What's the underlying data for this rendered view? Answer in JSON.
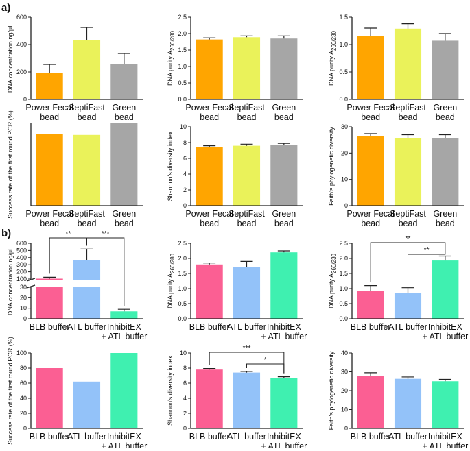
{
  "panels": {
    "a": "a)",
    "b": "b)"
  },
  "colors": {
    "a": [
      "#FFA500",
      "#EAF25A",
      "#A6A6A6"
    ],
    "b": [
      "#FB5F93",
      "#93C2F9",
      "#3FF0B0"
    ],
    "axis": "#222222"
  },
  "chart_data": [
    {
      "id": "a1",
      "type": "bar",
      "categories": [
        "Power Fecal\nbead",
        "SeptiFast\nbead",
        "Green\nbead"
      ],
      "values": [
        195,
        435,
        260
      ],
      "errors": [
        60,
        90,
        75
      ],
      "ylabel": "DNA concentration ng/μL",
      "ylim": [
        0,
        600
      ],
      "yticks": [
        "0",
        "200",
        "400",
        "600"
      ],
      "sig": []
    },
    {
      "id": "a2",
      "type": "bar",
      "categories": [
        "Power Fecal\nbead",
        "SeptiFast\nbead",
        "Green\nbead"
      ],
      "values": [
        1.82,
        1.89,
        1.85
      ],
      "errors": [
        0.05,
        0.04,
        0.08
      ],
      "ylabel": "DNA purity A260/280",
      "ylim": [
        0,
        2.5
      ],
      "yticks": [
        "0.0",
        "0.5",
        "1.0",
        "1.5",
        "2.0",
        "2.5"
      ],
      "sig": []
    },
    {
      "id": "a3",
      "type": "bar",
      "categories": [
        "Power Fecal\nbead",
        "SeptiFast\nbead",
        "Green\nbead"
      ],
      "values": [
        1.15,
        1.29,
        1.07
      ],
      "errors": [
        0.15,
        0.09,
        0.13
      ],
      "ylabel": "DNA purity A260/230",
      "ylim": [
        0,
        1.5
      ],
      "yticks": [
        "0.0",
        "0.5",
        "1.0",
        "1.5"
      ],
      "sig": []
    },
    {
      "id": "a4",
      "type": "bar",
      "categories": [
        "Power Fecal\nbead",
        "SeptiFast\nbead",
        "Green\nbead"
      ],
      "values": [
        87,
        86,
        100
      ],
      "errors": null,
      "ylabel": "Success rate of the first round PCR (%)",
      "ylim": [
        0,
        100
      ],
      "yticks": [],
      "sig": []
    },
    {
      "id": "a5",
      "type": "bar",
      "categories": [
        "Power Fecal\nbead",
        "SeptiFast\nbead",
        "Green\nbead"
      ],
      "values": [
        7.4,
        7.6,
        7.7
      ],
      "errors": [
        0.2,
        0.2,
        0.2
      ],
      "ylabel": "Shannon's diversity index",
      "ylim": [
        0,
        10
      ],
      "yticks": [
        "0",
        "2",
        "4",
        "6",
        "8",
        "10"
      ],
      "sig": []
    },
    {
      "id": "a6",
      "type": "bar",
      "categories": [
        "Power Fecal\nbead",
        "SeptiFast\nbead",
        "Green\nbead"
      ],
      "values": [
        26.5,
        25.8,
        25.8
      ],
      "errors": [
        0.9,
        1.2,
        1.2
      ],
      "ylabel": "Faith's phylogenetic diversity",
      "ylim": [
        0,
        30
      ],
      "yticks": [
        "0",
        "10",
        "20",
        "30"
      ],
      "sig": []
    },
    {
      "id": "b1",
      "type": "bar",
      "categories": [
        "BLB buffer",
        "ATL buffer",
        "InhibitEX\n+ ATL buffer"
      ],
      "values": [
        105,
        360,
        7
      ],
      "errors": [
        20,
        160,
        2
      ],
      "ylabel": "DNA concentration ng/μL",
      "ylim": [
        0,
        600
      ],
      "yticks": [
        "0",
        "10",
        "20",
        "30",
        "100",
        "200",
        "300",
        "400",
        "500",
        "600"
      ],
      "broken_axis": {
        "lower": [
          0,
          30
        ],
        "upper": [
          100,
          600
        ]
      },
      "sig": [
        {
          "from": 0,
          "to": 1,
          "label": "**"
        },
        {
          "from": 1,
          "to": 2,
          "label": "***"
        }
      ]
    },
    {
      "id": "b2",
      "type": "bar",
      "categories": [
        "BLB buffer",
        "ATL buffer",
        "InhibitEX\n+ ATL buffer"
      ],
      "values": [
        1.8,
        1.71,
        2.2
      ],
      "errors": [
        0.05,
        0.19,
        0.05
      ],
      "ylabel": "DNA purity A260/280",
      "ylim": [
        0,
        2.5
      ],
      "yticks": [
        "0.0",
        "0.5",
        "1.0",
        "1.5",
        "2.0",
        "2.5"
      ],
      "sig": []
    },
    {
      "id": "b3",
      "type": "bar",
      "categories": [
        "BLB buffer",
        "ATL buffer",
        "InhibitEX\n+ ATL buffer"
      ],
      "values": [
        0.92,
        0.86,
        1.93
      ],
      "errors": [
        0.18,
        0.17,
        0.15
      ],
      "ylabel": "DNA purity A260/230",
      "ylim": [
        0,
        2.5
      ],
      "yticks": [
        "0.0",
        "0.5",
        "1.0",
        "1.5",
        "2.0",
        "2.5"
      ],
      "sig": [
        {
          "from": 0,
          "to": 2,
          "label": "**"
        },
        {
          "from": 1,
          "to": 2,
          "label": "**"
        }
      ]
    },
    {
      "id": "b4",
      "type": "bar",
      "categories": [
        "BLB buffer",
        "ATL buffer",
        "InhibitEX\n+ ATL buffer"
      ],
      "values": [
        80,
        62,
        100
      ],
      "errors": null,
      "ylabel": "Success rate of the first round PCR (%)",
      "ylim": [
        0,
        100
      ],
      "yticks": [
        "0",
        "20",
        "40",
        "60",
        "80",
        "100"
      ],
      "sig": []
    },
    {
      "id": "b5",
      "type": "bar",
      "categories": [
        "BLB buffer",
        "ATL buffer",
        "InhibitEX\n+ ATL buffer"
      ],
      "values": [
        7.8,
        7.4,
        6.7
      ],
      "errors": [
        0.15,
        0.15,
        0.15
      ],
      "ylabel": "Shannon's diversity index",
      "ylim": [
        0,
        10
      ],
      "yticks": [
        "0",
        "2",
        "4",
        "6",
        "8",
        "10"
      ],
      "sig": [
        {
          "from": 0,
          "to": 2,
          "label": "***"
        },
        {
          "from": 1,
          "to": 2,
          "label": "*"
        }
      ]
    },
    {
      "id": "b6",
      "type": "bar",
      "categories": [
        "BLB buffer",
        "ATL buffer",
        "InhibitEX\n+ ATL buffer"
      ],
      "values": [
        28,
        26.3,
        25
      ],
      "errors": [
        1.5,
        1,
        1
      ],
      "ylabel": "Faith's phylogenetic diversity",
      "ylim": [
        0,
        40
      ],
      "yticks": [
        "0",
        "10",
        "20",
        "30",
        "40"
      ],
      "sig": []
    }
  ]
}
